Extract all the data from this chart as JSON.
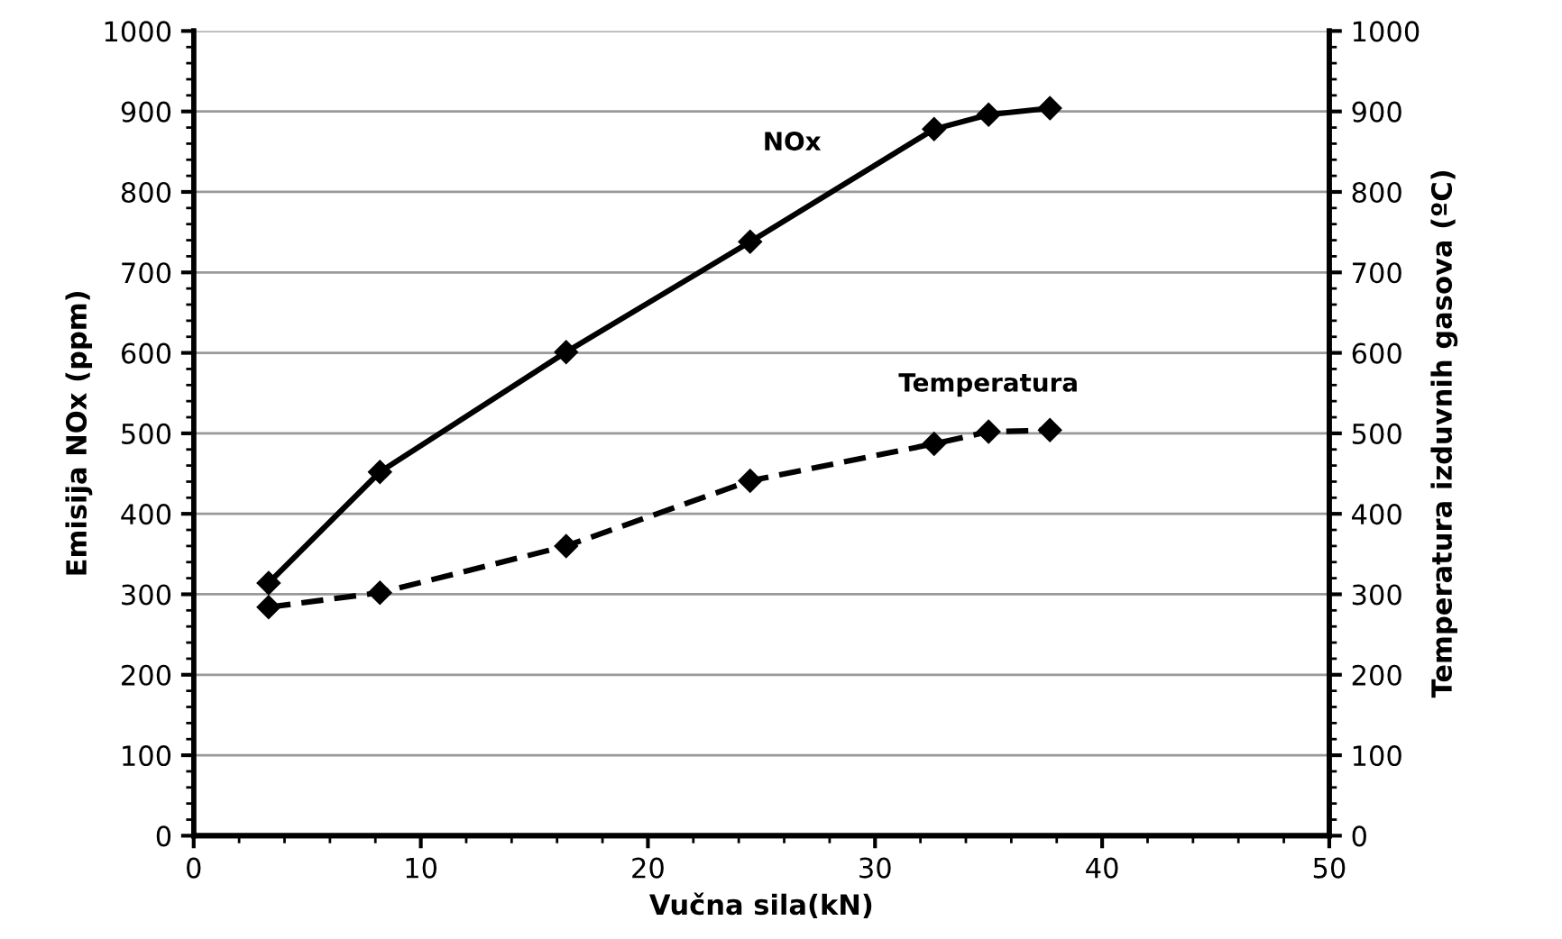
{
  "chart_data": {
    "type": "line",
    "xlabel": "Vučna sila(kN)",
    "ylabel": "Emisija NOx (ppm)",
    "y2label": "Temperatura izduvnih gasova (ºC)",
    "x": [
      3.3,
      8.2,
      16.4,
      24.5,
      32.6,
      35.0,
      37.7
    ],
    "series": [
      {
        "name": "NOx",
        "color": "#000000",
        "line_style": "solid",
        "values": [
          314,
          452,
          601,
          738,
          878,
          896,
          904
        ]
      },
      {
        "name": "Temperatura",
        "color": "#000000",
        "line_style": "dashed",
        "axis": "y2",
        "values": [
          284,
          302,
          360,
          441,
          487,
          502,
          504
        ]
      }
    ],
    "marker": "diamond",
    "xlim": [
      0,
      50
    ],
    "xticks": [
      0,
      10,
      20,
      30,
      40,
      50
    ],
    "ylim": [
      0,
      1000
    ],
    "yticks": [
      0,
      100,
      200,
      300,
      400,
      500,
      600,
      700,
      800,
      900,
      1000
    ],
    "y2lim": [
      0,
      1000
    ],
    "y2ticks": [
      0,
      100,
      200,
      300,
      400,
      500,
      600,
      700,
      800,
      900,
      1000
    ],
    "grid": "y",
    "legend": false
  }
}
